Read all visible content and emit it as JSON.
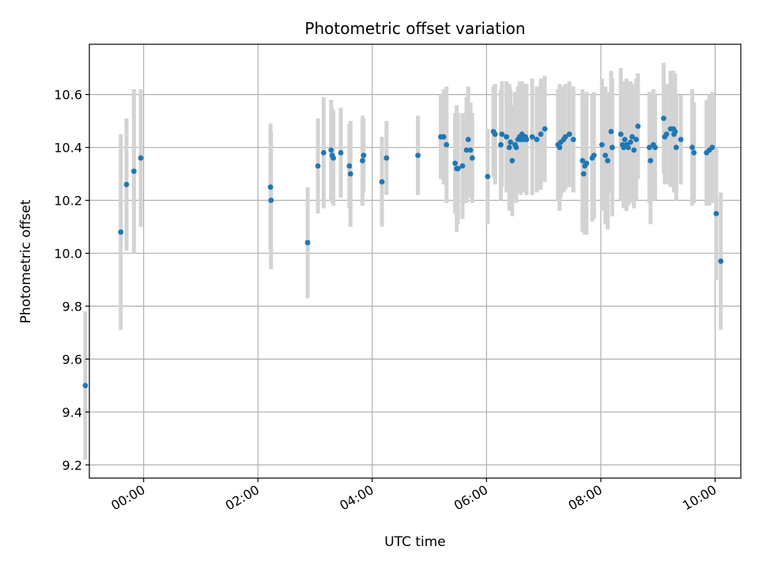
{
  "chart_data": {
    "type": "scatter",
    "title": "Photometric offset variation",
    "xlabel": "UTC time",
    "ylabel": "Photometric offset",
    "grid": true,
    "xlim": [
      -0.95,
      10.45
    ],
    "ylim": [
      9.15,
      10.79
    ],
    "x_ticks": [
      {
        "value": 0,
        "label": "00:00"
      },
      {
        "value": 2,
        "label": "02:00"
      },
      {
        "value": 4,
        "label": "04:00"
      },
      {
        "value": 6,
        "label": "06:00"
      },
      {
        "value": 8,
        "label": "08:00"
      },
      {
        "value": 10,
        "label": "10:00"
      }
    ],
    "y_ticks": [
      {
        "value": 9.2,
        "label": "9.2"
      },
      {
        "value": 9.4,
        "label": "9.4"
      },
      {
        "value": 9.6,
        "label": "9.6"
      },
      {
        "value": 9.8,
        "label": "9.8"
      },
      {
        "value": 10.0,
        "label": "10.0"
      },
      {
        "value": 10.2,
        "label": "10.2"
      },
      {
        "value": 10.4,
        "label": "10.4"
      },
      {
        "value": 10.6,
        "label": "10.6"
      }
    ],
    "colors": {
      "point": "#1f77b4",
      "errorbar": "#d3d3d3",
      "grid": "#b0b0b0",
      "axis": "#000000"
    },
    "series": [
      {
        "name": "offset",
        "x_hours": [
          -1.02,
          -0.4,
          -0.3,
          -0.17,
          -0.05,
          2.22,
          2.23,
          2.87,
          3.05,
          3.15,
          3.28,
          3.3,
          3.32,
          3.45,
          3.6,
          3.62,
          3.83,
          3.85,
          4.17,
          4.25,
          4.8,
          5.2,
          5.25,
          5.3,
          5.45,
          5.48,
          5.5,
          5.58,
          5.65,
          5.68,
          5.72,
          5.75,
          6.02,
          6.12,
          6.15,
          6.25,
          6.27,
          6.35,
          6.4,
          6.42,
          6.45,
          6.5,
          6.52,
          6.55,
          6.58,
          6.6,
          6.62,
          6.65,
          6.68,
          6.7,
          6.8,
          6.88,
          6.95,
          7.02,
          7.25,
          7.28,
          7.3,
          7.35,
          7.38,
          7.45,
          7.52,
          7.68,
          7.7,
          7.72,
          7.75,
          7.85,
          7.88,
          8.02,
          8.08,
          8.12,
          8.18,
          8.2,
          8.35,
          8.38,
          8.4,
          8.42,
          8.45,
          8.48,
          8.52,
          8.55,
          8.58,
          8.62,
          8.65,
          8.85,
          8.87,
          8.92,
          8.95,
          9.1,
          9.12,
          9.15,
          9.22,
          9.27,
          9.28,
          9.3,
          9.32,
          9.4,
          9.6,
          9.63,
          9.85,
          9.9,
          9.95,
          10.02,
          10.1
        ],
        "values": [
          9.5,
          10.08,
          10.26,
          10.31,
          10.36,
          10.25,
          10.2,
          10.04,
          10.33,
          10.38,
          10.39,
          10.37,
          10.36,
          10.38,
          10.33,
          10.3,
          10.35,
          10.37,
          10.27,
          10.36,
          10.37,
          10.44,
          10.44,
          10.41,
          10.34,
          10.32,
          10.32,
          10.33,
          10.39,
          10.43,
          10.39,
          10.36,
          10.29,
          10.46,
          10.45,
          10.41,
          10.45,
          10.44,
          10.4,
          10.42,
          10.35,
          10.41,
          10.4,
          10.43,
          10.44,
          10.43,
          10.45,
          10.43,
          10.44,
          10.43,
          10.44,
          10.43,
          10.45,
          10.47,
          10.41,
          10.4,
          10.42,
          10.43,
          10.44,
          10.45,
          10.43,
          10.35,
          10.3,
          10.33,
          10.34,
          10.36,
          10.37,
          10.41,
          10.37,
          10.35,
          10.46,
          10.4,
          10.45,
          10.41,
          10.4,
          10.43,
          10.41,
          10.4,
          10.42,
          10.44,
          10.39,
          10.43,
          10.48,
          10.4,
          10.35,
          10.41,
          10.4,
          10.51,
          10.44,
          10.45,
          10.47,
          10.47,
          10.45,
          10.46,
          10.4,
          10.43,
          10.4,
          10.38,
          10.38,
          10.39,
          10.4,
          10.15,
          9.97
        ],
        "errors": [
          0.28,
          0.37,
          0.25,
          0.31,
          0.26,
          0.24,
          0.26,
          0.21,
          0.18,
          0.21,
          0.19,
          0.18,
          0.18,
          0.17,
          0.16,
          0.2,
          0.17,
          0.14,
          0.17,
          0.14,
          0.15,
          0.16,
          0.18,
          0.22,
          0.19,
          0.24,
          0.21,
          0.2,
          0.2,
          0.2,
          0.18,
          0.17,
          0.18,
          0.17,
          0.19,
          0.21,
          0.2,
          0.21,
          0.24,
          0.2,
          0.21,
          0.2,
          0.21,
          0.2,
          0.21,
          0.21,
          0.2,
          0.2,
          0.2,
          0.21,
          0.22,
          0.2,
          0.21,
          0.2,
          0.21,
          0.24,
          0.21,
          0.2,
          0.2,
          0.2,
          0.2,
          0.27,
          0.22,
          0.26,
          0.27,
          0.24,
          0.24,
          0.25,
          0.26,
          0.26,
          0.23,
          0.26,
          0.25,
          0.2,
          0.23,
          0.22,
          0.25,
          0.22,
          0.23,
          0.2,
          0.22,
          0.23,
          0.2,
          0.21,
          0.24,
          0.21,
          0.2,
          0.21,
          0.18,
          0.19,
          0.22,
          0.22,
          0.22,
          0.22,
          0.2,
          0.17,
          0.22,
          0.19,
          0.2,
          0.21,
          0.21,
          0.25,
          0.26
        ]
      }
    ]
  }
}
